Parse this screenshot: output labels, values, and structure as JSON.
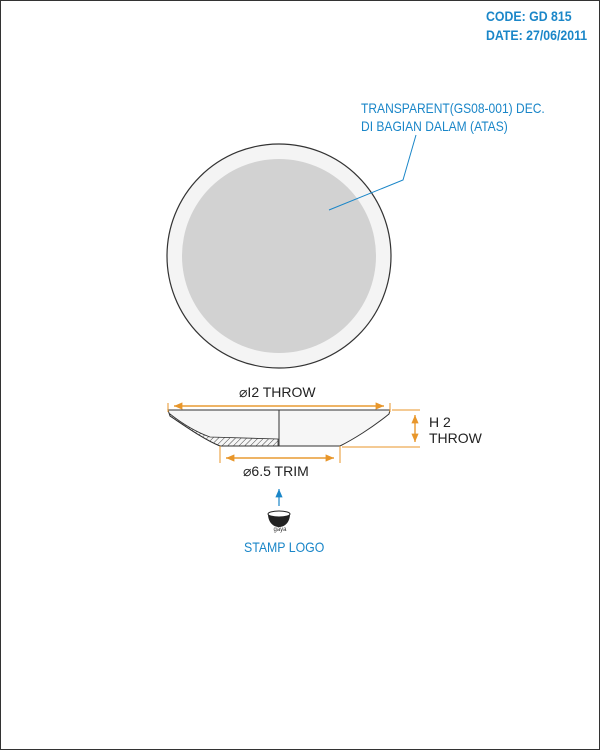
{
  "header": {
    "code": "CODE: GD 815",
    "date": "DATE: 27/06/2011"
  },
  "callout": {
    "line1": "TRANSPARENT(GS08-001) DEC.",
    "line2": "DI BAGIAN DALAM (ATAS)"
  },
  "dimensions": {
    "diameter_top": "⌀I2 THROW",
    "height_line1": "H 2",
    "height_line2": "THROW",
    "diameter_trim": "⌀6.5 TRIM"
  },
  "stamp": {
    "logo_text": "gaya",
    "caption": "STAMP LOGO"
  },
  "colors": {
    "accent_blue": "#1a86c8",
    "dimension_orange": "#e8962a",
    "disc_fill": "#d2d2d2",
    "rim_fill": "#f4f4f4"
  }
}
